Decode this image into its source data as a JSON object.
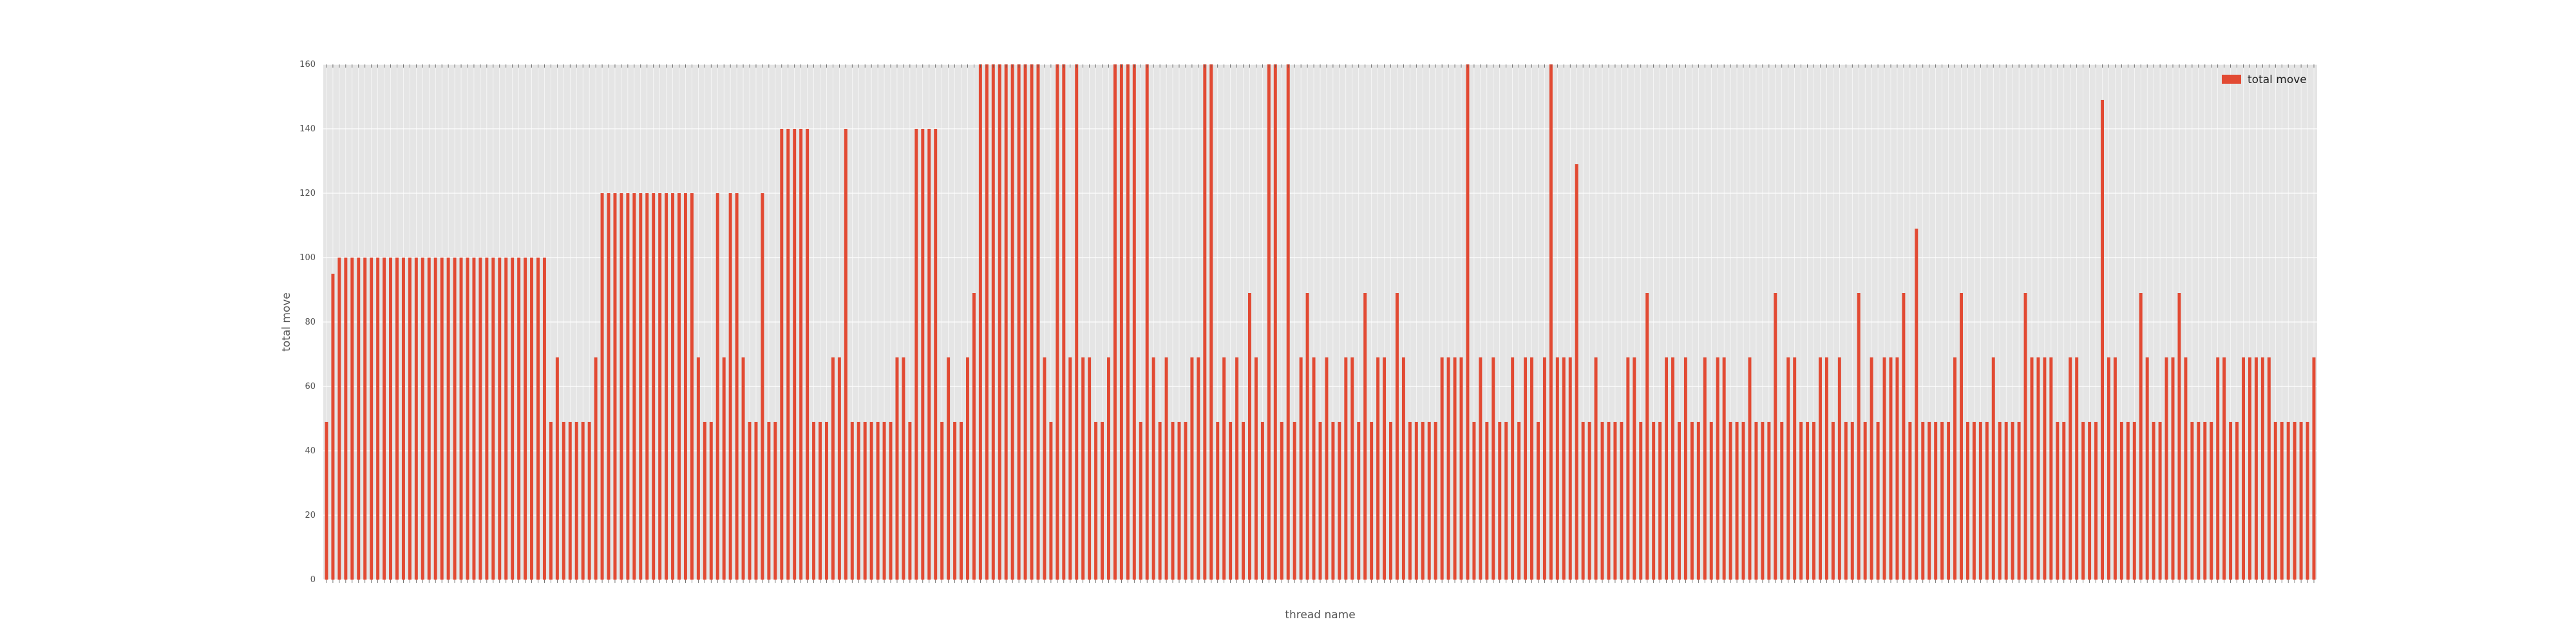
{
  "chart_data": {
    "type": "bar",
    "xlabel": "thread name",
    "ylabel": "total move",
    "ylim": [
      0,
      160
    ],
    "y_ticks": [
      0,
      20,
      40,
      60,
      80,
      100,
      120,
      140,
      160
    ],
    "grid": true,
    "legend_position": "top-right",
    "series": [
      {
        "name": "total move",
        "color": "#E24A33",
        "values": [
          49,
          95,
          100,
          100,
          100,
          100,
          100,
          100,
          100,
          100,
          100,
          100,
          100,
          100,
          100,
          100,
          100,
          100,
          100,
          100,
          100,
          100,
          100,
          100,
          100,
          100,
          100,
          100,
          100,
          100,
          100,
          100,
          100,
          100,
          100,
          49,
          69,
          49,
          49,
          49,
          49,
          49,
          69,
          120,
          120,
          120,
          120,
          120,
          120,
          120,
          120,
          120,
          120,
          120,
          120,
          120,
          120,
          120,
          69,
          49,
          49,
          120,
          69,
          120,
          120,
          69,
          49,
          49,
          120,
          49,
          49,
          140,
          140,
          140,
          140,
          140,
          49,
          49,
          49,
          69,
          69,
          140,
          49,
          49,
          49,
          49,
          49,
          49,
          49,
          69,
          69,
          49,
          140,
          140,
          140,
          140,
          49,
          69,
          49,
          49,
          69,
          89,
          160,
          160,
          160,
          160,
          160,
          160,
          160,
          160,
          160,
          160,
          69,
          49,
          160,
          160,
          69,
          160,
          69,
          69,
          49,
          49,
          69,
          160,
          160,
          160,
          160,
          49,
          160,
          69,
          49,
          69,
          49,
          49,
          49,
          69,
          69,
          160,
          160,
          49,
          69,
          49,
          69,
          49,
          89,
          69,
          49,
          160,
          160,
          49,
          160,
          49,
          69,
          89,
          69,
          49,
          69,
          49,
          49,
          69,
          69,
          49,
          89,
          49,
          69,
          69,
          49,
          89,
          69,
          49,
          49,
          49,
          49,
          49,
          69,
          69,
          69,
          69,
          160,
          49,
          69,
          49,
          69,
          49,
          49,
          69,
          49,
          69,
          69,
          49,
          69,
          160,
          69,
          69,
          69,
          129,
          49,
          49,
          69,
          49,
          49,
          49,
          49,
          69,
          69,
          49,
          89,
          49,
          49,
          69,
          69,
          49,
          69,
          49,
          49,
          69,
          49,
          69,
          69,
          49,
          49,
          49,
          69,
          49,
          49,
          49,
          89,
          49,
          69,
          69,
          49,
          49,
          49,
          69,
          69,
          49,
          69,
          49,
          49,
          89,
          49,
          69,
          49,
          69,
          69,
          69,
          89,
          49,
          109,
          49,
          49,
          49,
          49,
          49,
          69,
          89,
          49,
          49,
          49,
          49,
          69,
          49,
          49,
          49,
          49,
          89,
          69,
          69,
          69,
          69,
          49,
          49,
          69,
          69,
          49,
          49,
          49,
          149,
          69,
          69,
          49,
          49,
          49,
          89,
          69,
          49,
          49,
          69,
          69,
          89,
          69,
          49,
          49,
          49,
          49,
          69,
          69,
          49,
          49,
          69,
          69,
          69,
          69,
          69,
          49,
          49,
          49,
          49,
          49,
          49,
          69
        ]
      }
    ],
    "tick_labels_note": "x tick labels (thread names) are too small and overlapping to read"
  }
}
